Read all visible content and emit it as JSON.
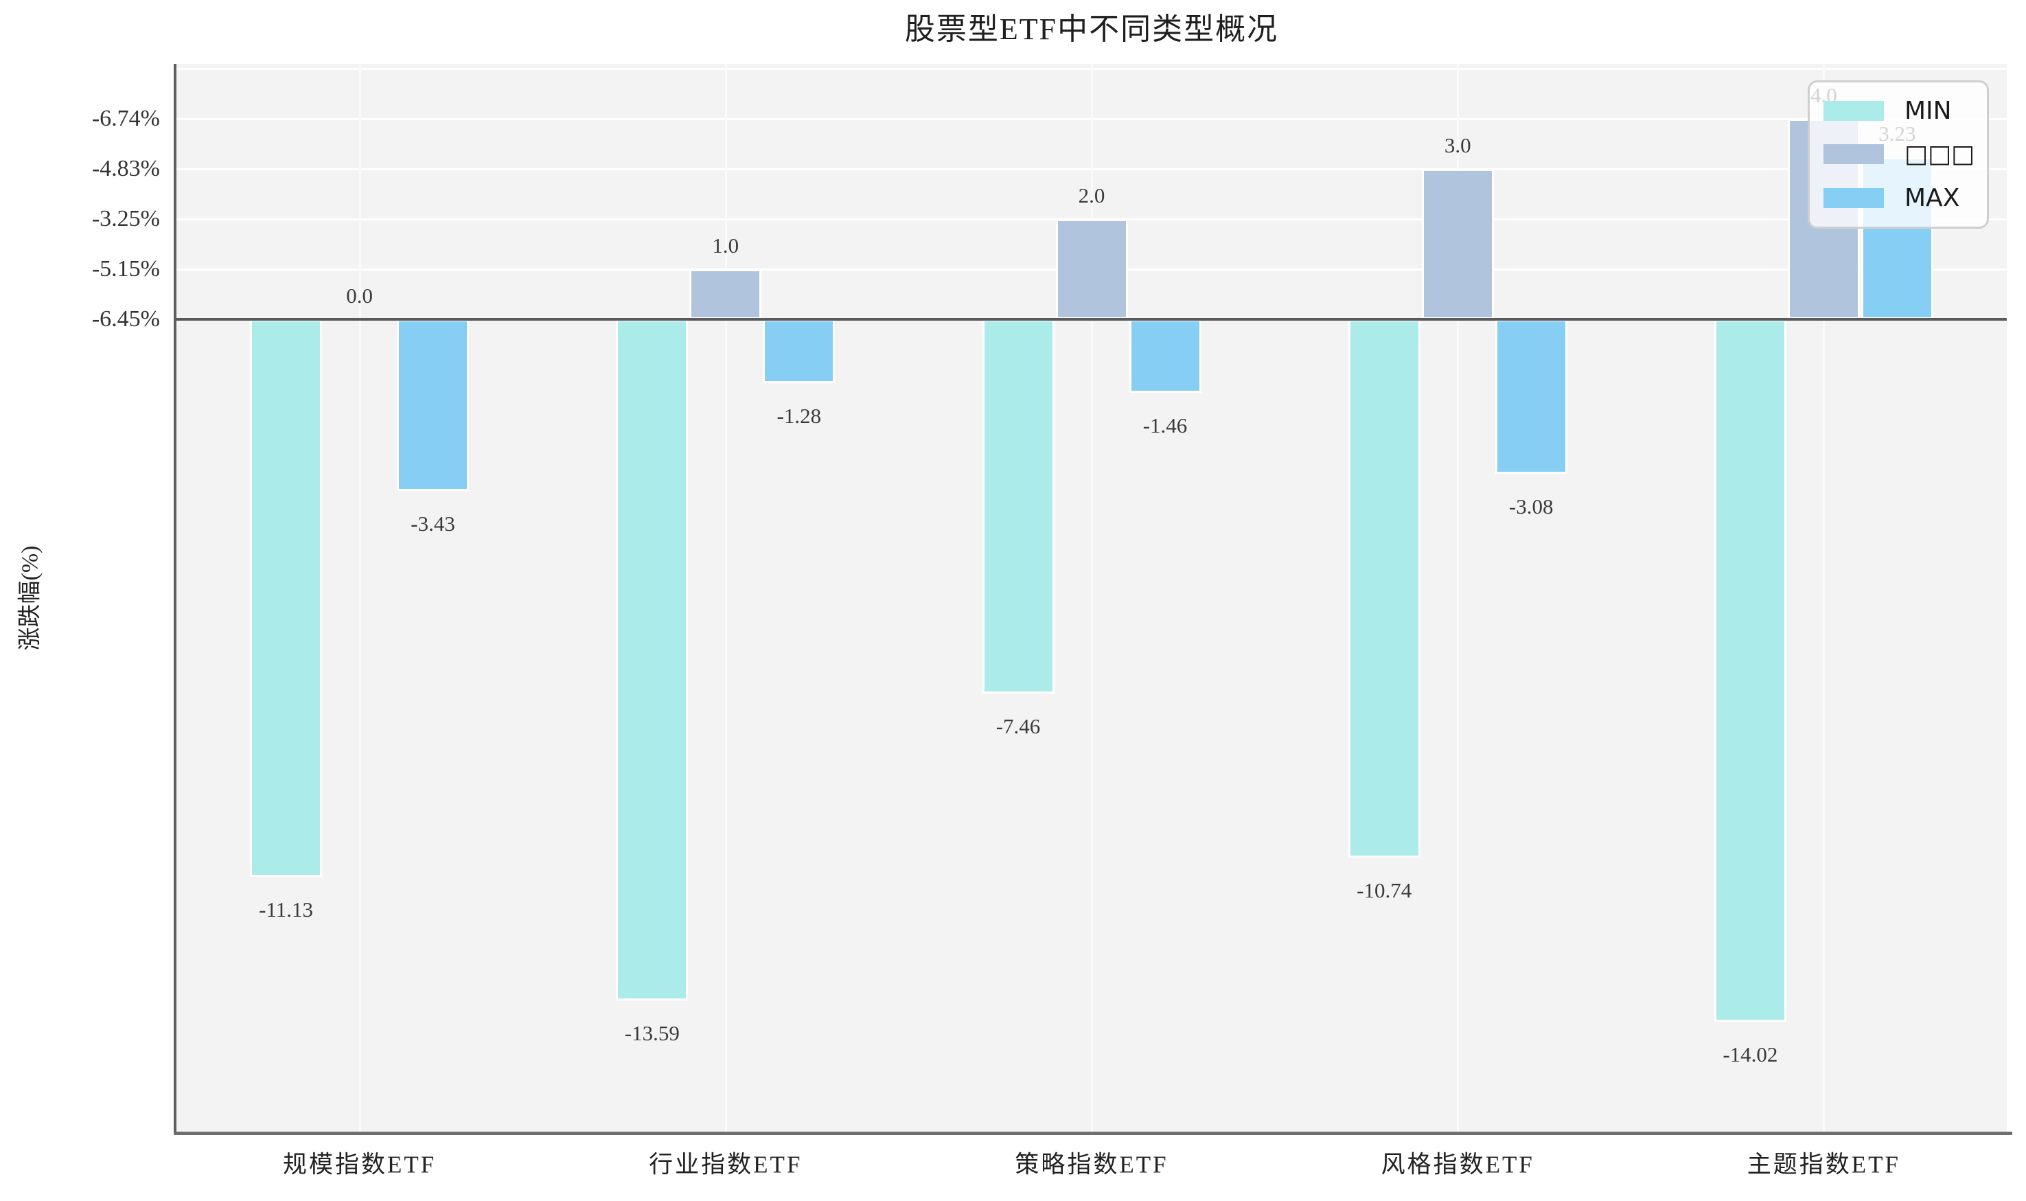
{
  "chart_data": {
    "type": "bar",
    "title": "股票型ETF中不同类型概况",
    "ylabel": "涨跌幅(%)",
    "xlabel": "",
    "categories": [
      "规模指数ETF",
      "行业指数ETF",
      "策略指数ETF",
      "风格指数ETF",
      "主题指数ETF"
    ],
    "series": [
      {
        "name": "MIN",
        "color": "#abeceb",
        "values": [
          -11.13,
          -13.59,
          -7.46,
          -10.74,
          -14.02
        ],
        "labels": [
          "-11.13",
          "-13.59",
          "-7.46",
          "-10.74",
          "-14.02"
        ]
      },
      {
        "name": "□□□",
        "color": "#b0c4de",
        "values": [
          0.0,
          1.0,
          2.0,
          3.0,
          4.0
        ],
        "labels": [
          "0.0",
          "1.0",
          "2.0",
          "3.0",
          "4.0"
        ]
      },
      {
        "name": "MAX",
        "color": "#87cef5",
        "values": [
          -3.43,
          -1.28,
          -1.46,
          -3.08,
          3.23
        ],
        "labels": [
          "-3.43",
          "-1.28",
          "-1.46",
          "-3.08",
          "3.23"
        ]
      }
    ],
    "y_axis": {
      "ticks": [
        {
          "value": 4,
          "label": "-6.74%"
        },
        {
          "value": 3,
          "label": "-4.83%"
        },
        {
          "value": 2,
          "label": "-3.25%"
        },
        {
          "value": 1,
          "label": "-5.15%"
        },
        {
          "value": 0,
          "label": "-6.45%"
        }
      ],
      "unlabeled_gridline_values": [
        5
      ],
      "ylim": [
        -16.2,
        5.1
      ],
      "zero_line": true
    },
    "grid": "on",
    "legend": {
      "position": "upper right",
      "entries": [
        "MIN",
        "□□□",
        "MAX"
      ]
    }
  }
}
